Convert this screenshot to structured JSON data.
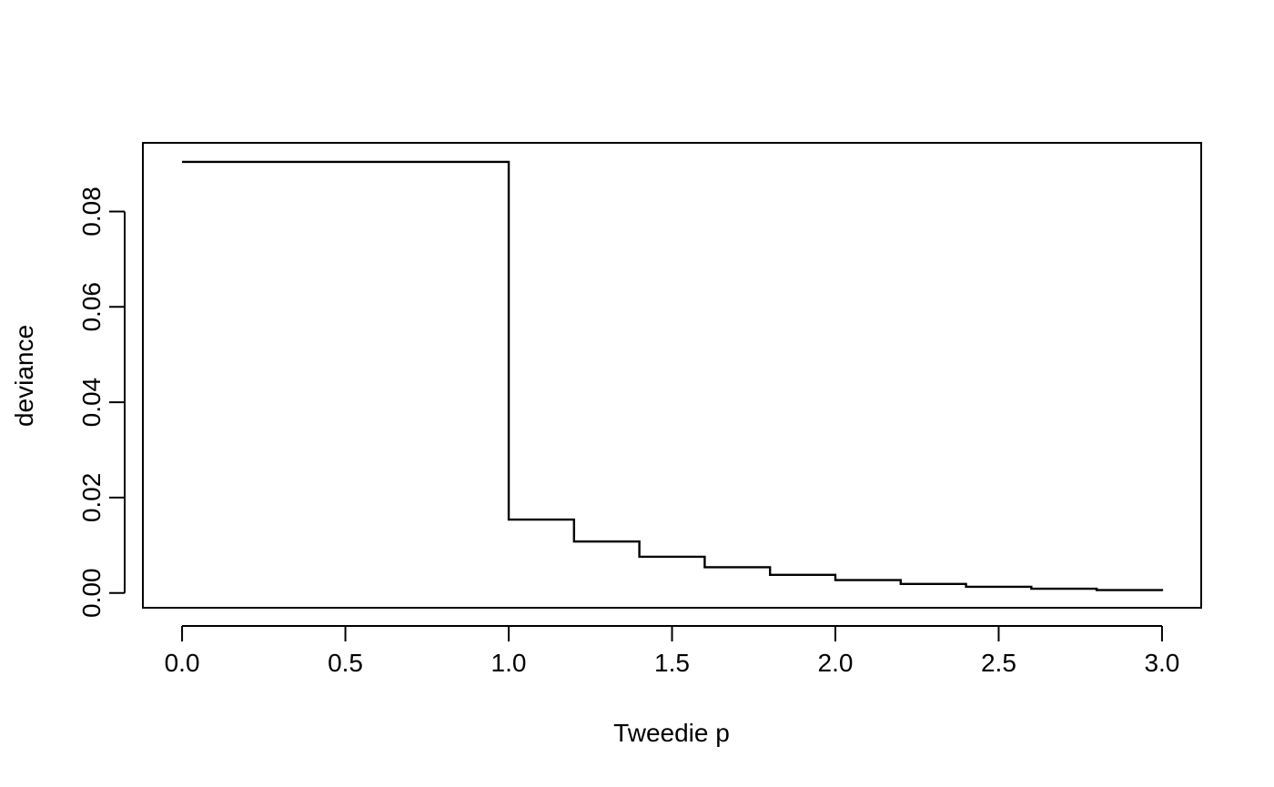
{
  "chart_data": {
    "type": "line",
    "step": true,
    "xlabel": "Tweedie p",
    "ylabel": "deviance",
    "xlim": [
      -0.12,
      3.12
    ],
    "ylim": [
      -0.0031,
      0.0944
    ],
    "x_ticks": [
      0.0,
      0.5,
      1.0,
      1.5,
      2.0,
      2.5,
      3.0
    ],
    "x_tick_labels": [
      "0.0",
      "0.5",
      "1.0",
      "1.5",
      "2.0",
      "2.5",
      "3.0"
    ],
    "y_ticks": [
      0.0,
      0.02,
      0.04,
      0.06,
      0.08
    ],
    "y_tick_labels": [
      "0.00",
      "0.02",
      "0.04",
      "0.06",
      "0.08"
    ],
    "grid": false,
    "box": true,
    "color": "#000000",
    "series": [
      {
        "x": [
          0.0,
          1.0,
          1.2,
          1.4,
          1.6,
          1.8,
          2.0,
          2.2,
          2.4,
          2.6,
          2.8,
          3.0
        ],
        "values": [
          0.0904,
          0.0154,
          0.0108,
          0.0076,
          0.0054,
          0.0038,
          0.0027,
          0.0019,
          0.0013,
          0.0009,
          0.0006,
          0.0004
        ]
      }
    ]
  }
}
